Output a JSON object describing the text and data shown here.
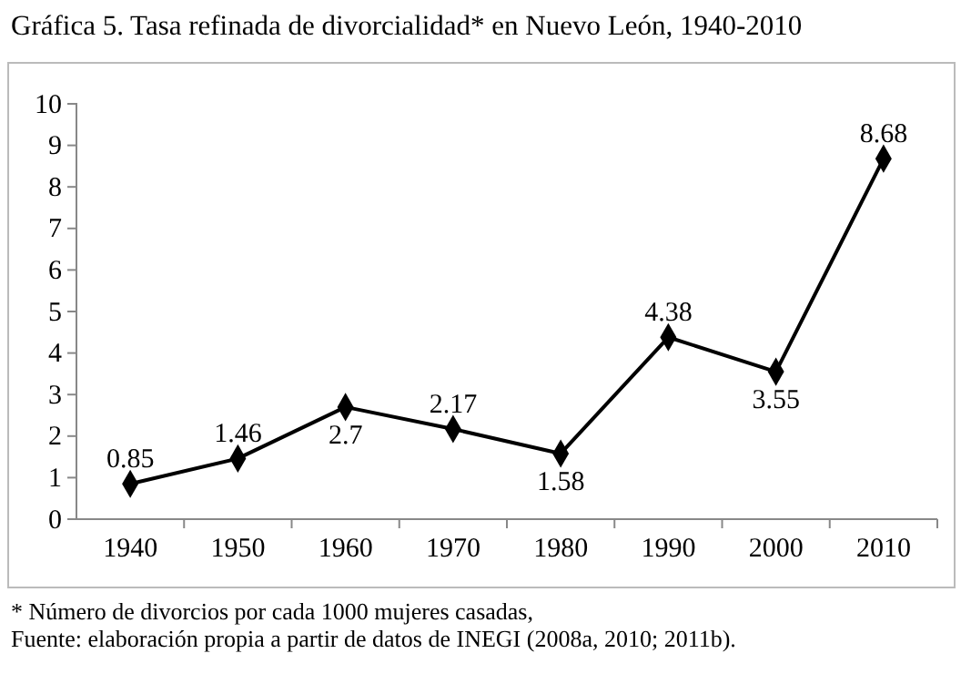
{
  "chart_data": {
    "type": "line",
    "title": "Gráfica 5. Tasa refinada de divorcialidad* en Nuevo León, 1940-2010",
    "categories": [
      "1940",
      "1950",
      "1960",
      "1970",
      "1980",
      "1990",
      "2000",
      "2010"
    ],
    "series": [
      {
        "color": "#000000",
        "values": [
          0.85,
          1.46,
          2.7,
          2.17,
          1.58,
          4.38,
          3.55,
          8.68
        ]
      }
    ],
    "ylim": [
      0,
      10
    ],
    "yticks": [
      0,
      1,
      2,
      3,
      4,
      5,
      6,
      7,
      8,
      9,
      10
    ],
    "grid": false,
    "marker": "diamond",
    "line_style": "solid",
    "data_labels": true,
    "annotations": [
      "* Número de divorcios por cada 1000 mujeres casadas,",
      "Fuente: elaboración propia a partir de datos de INEGI (2008a, 2010; 2011b)."
    ]
  }
}
